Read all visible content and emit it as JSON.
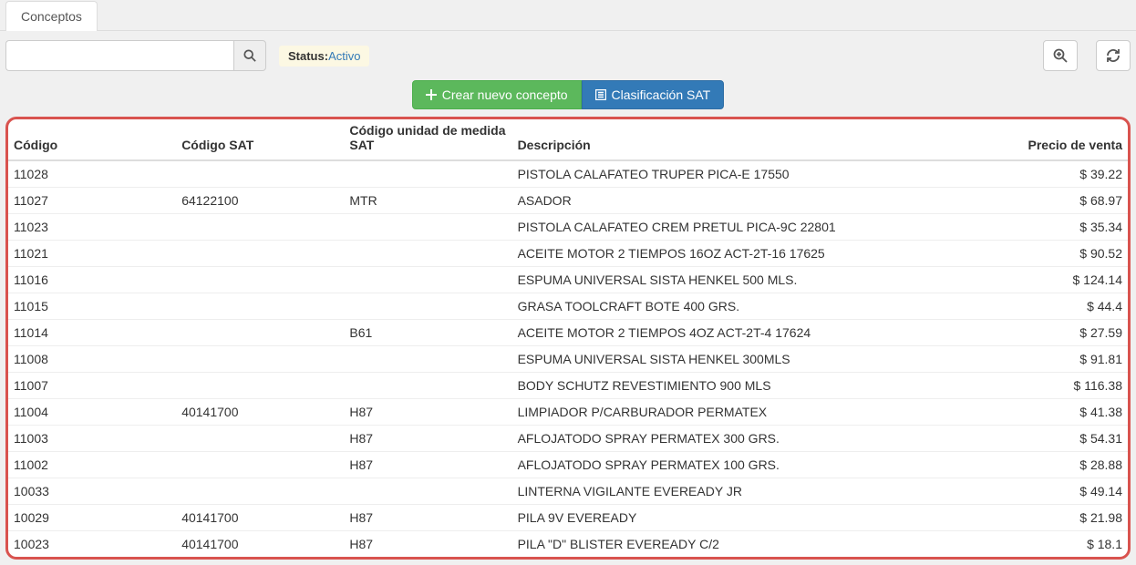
{
  "tab": {
    "label": "Conceptos"
  },
  "search": {
    "value": "",
    "placeholder": ""
  },
  "status": {
    "label": "Status:",
    "value": "Activo"
  },
  "buttons": {
    "crear": "Crear nuevo concepto",
    "clasif": "Clasificación SAT"
  },
  "table": {
    "headers": {
      "codigo": "Código",
      "codigo_sat": "Código SAT",
      "unidad": "Código unidad de medida SAT",
      "descripcion": "Descripción",
      "precio": "Precio de venta"
    },
    "rows": [
      {
        "codigo": "11028",
        "codigo_sat": "",
        "unidad": "",
        "descripcion": "PISTOLA CALAFATEO TRUPER PICA-E 17550",
        "precio": "$ 39.22"
      },
      {
        "codigo": "11027",
        "codigo_sat": "64122100",
        "unidad": "MTR",
        "descripcion": "ASADOR",
        "precio": "$ 68.97"
      },
      {
        "codigo": "11023",
        "codigo_sat": "",
        "unidad": "",
        "descripcion": "PISTOLA CALAFATEO CREM PRETUL PICA-9C 22801",
        "precio": "$ 35.34"
      },
      {
        "codigo": "11021",
        "codigo_sat": "",
        "unidad": "",
        "descripcion": "ACEITE MOTOR 2 TIEMPOS 16OZ ACT-2T-16 17625",
        "precio": "$ 90.52"
      },
      {
        "codigo": "11016",
        "codigo_sat": "",
        "unidad": "",
        "descripcion": "ESPUMA UNIVERSAL SISTA HENKEL 500 MLS.",
        "precio": "$ 124.14"
      },
      {
        "codigo": "11015",
        "codigo_sat": "",
        "unidad": "",
        "descripcion": "GRASA TOOLCRAFT BOTE 400 GRS.",
        "precio": "$ 44.4"
      },
      {
        "codigo": "11014",
        "codigo_sat": "",
        "unidad": "B61",
        "descripcion": "ACEITE MOTOR 2 TIEMPOS 4OZ ACT-2T-4 17624",
        "precio": "$ 27.59"
      },
      {
        "codigo": "11008",
        "codigo_sat": "",
        "unidad": "",
        "descripcion": "ESPUMA UNIVERSAL SISTA HENKEL 300MLS",
        "precio": "$ 91.81"
      },
      {
        "codigo": "11007",
        "codigo_sat": "",
        "unidad": "",
        "descripcion": "BODY SCHUTZ REVESTIMIENTO 900 MLS",
        "precio": "$ 116.38"
      },
      {
        "codigo": "11004",
        "codigo_sat": "40141700",
        "unidad": "H87",
        "descripcion": "LIMPIADOR P/CARBURADOR PERMATEX",
        "precio": "$ 41.38"
      },
      {
        "codigo": "11003",
        "codigo_sat": "",
        "unidad": "H87",
        "descripcion": "AFLOJATODO SPRAY PERMATEX 300 GRS.",
        "precio": "$ 54.31"
      },
      {
        "codigo": "11002",
        "codigo_sat": "",
        "unidad": "H87",
        "descripcion": "AFLOJATODO SPRAY PERMATEX 100 GRS.",
        "precio": "$ 28.88"
      },
      {
        "codigo": "10033",
        "codigo_sat": "",
        "unidad": "",
        "descripcion": "LINTERNA VIGILANTE EVEREADY JR",
        "precio": "$ 49.14"
      },
      {
        "codigo": "10029",
        "codigo_sat": "40141700",
        "unidad": "H87",
        "descripcion": "PILA 9V EVEREADY",
        "precio": "$ 21.98"
      },
      {
        "codigo": "10023",
        "codigo_sat": "40141700",
        "unidad": "H87",
        "descripcion": "PILA \"D\" BLISTER EVEREADY C/2",
        "precio": "$ 18.1"
      }
    ]
  }
}
